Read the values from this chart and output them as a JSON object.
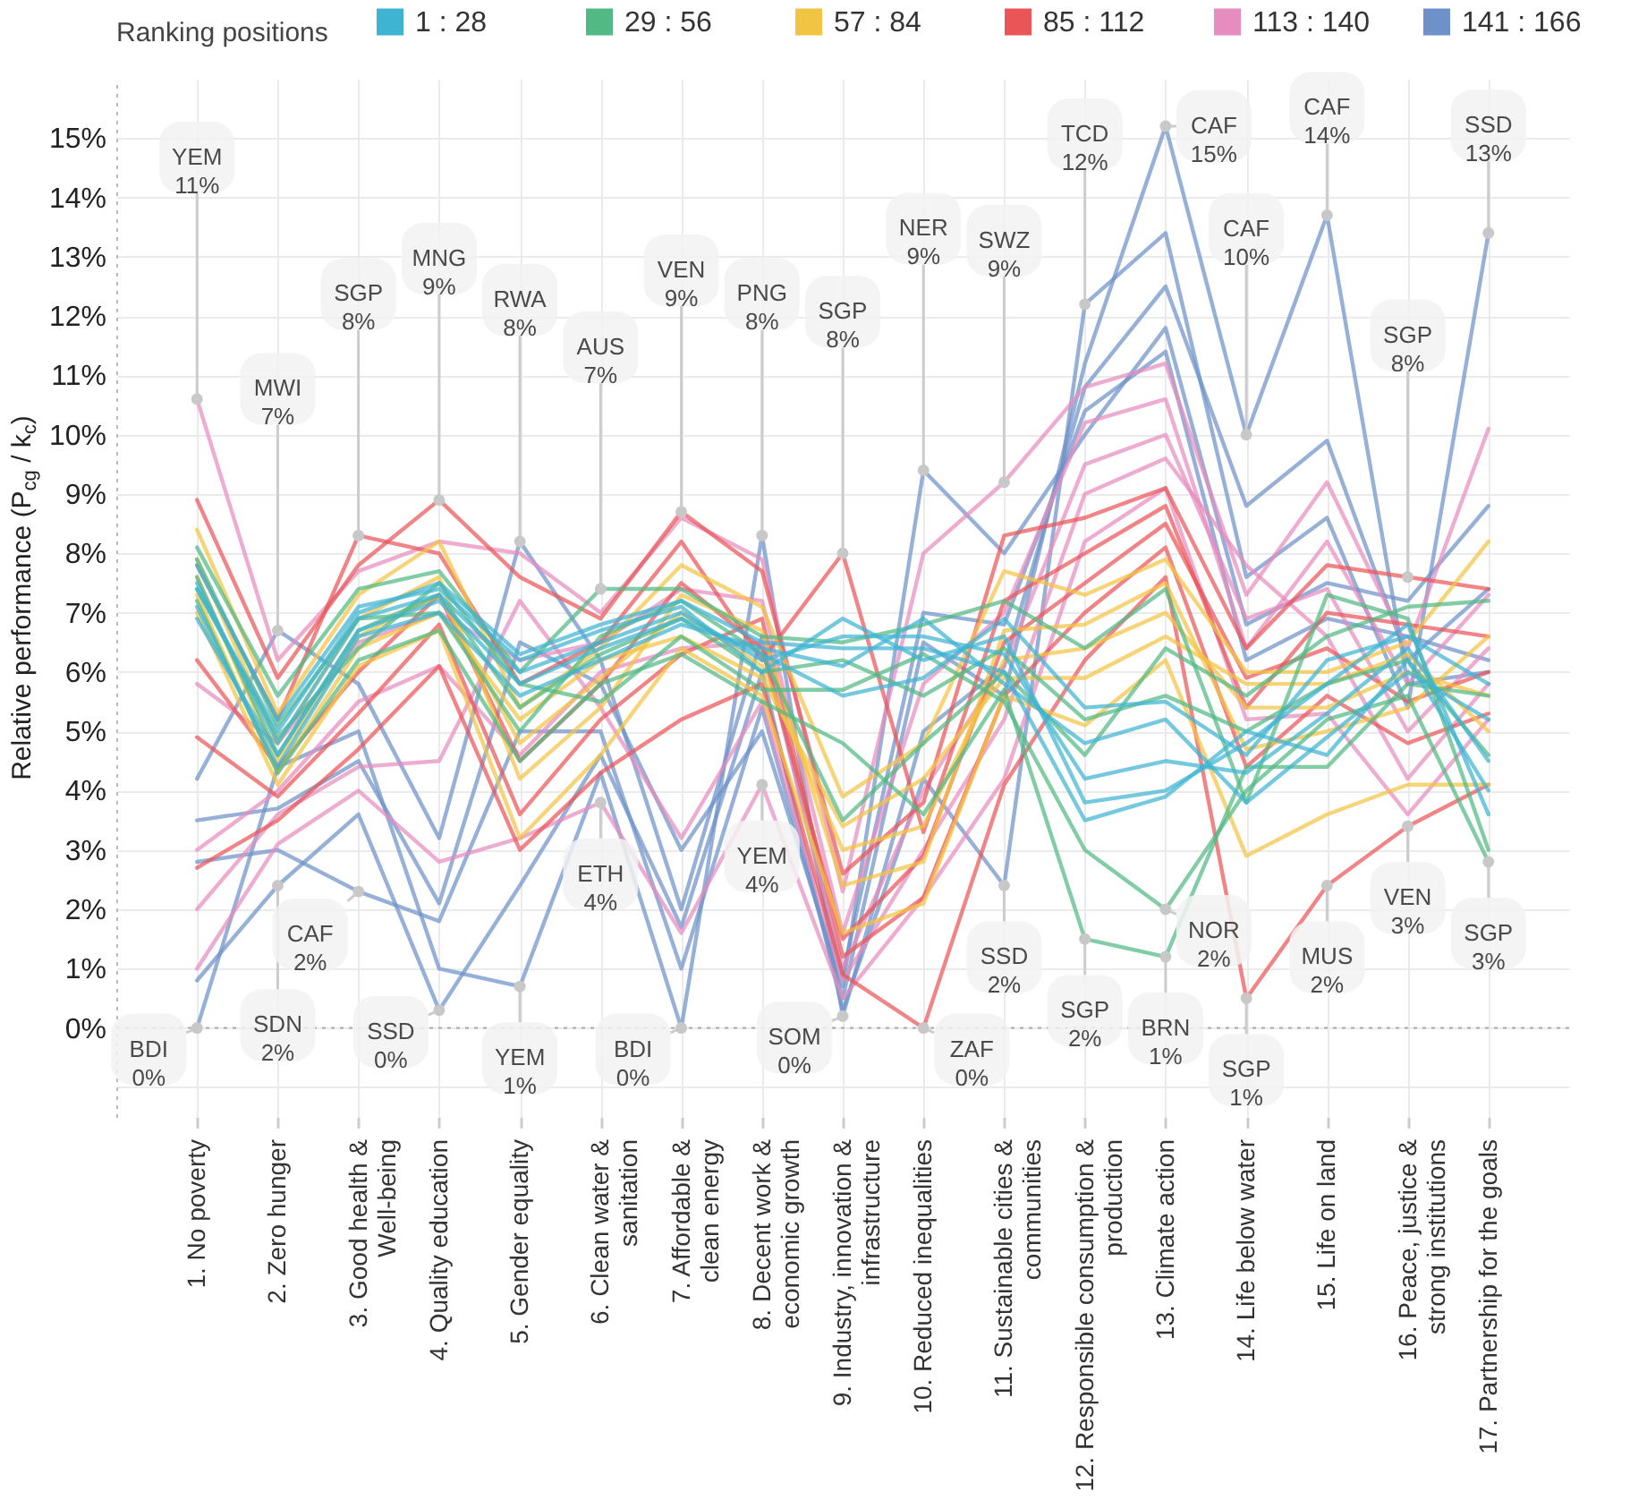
{
  "chart_data": {
    "type": "line",
    "ylabel": "Relative performance (P$_{cg}$ / k$_{c}$)",
    "legend_title": "Ranking positions",
    "legend": "top",
    "grid": true,
    "categories": [
      "1. No poverty",
      "2. Zero hunger",
      "3. Good health & Well-being",
      "4. Quality education",
      "5. Gender equality",
      "6. Clean water & sanitation",
      "7. Affordable & clean energy",
      "8. Decent work & economic growth",
      "9. Industry, innovation & infrastructure",
      "10. Reduced inequalities",
      "11. Sustainable cities & communities",
      "12. Responsible consumption & production",
      "13. Climate action",
      "14. Life below water",
      "15. Life on land",
      "16. Peace, justice & strong institutions",
      "17. Partnership for the goals"
    ],
    "ylim": [
      -1.5,
      16
    ],
    "yticks": [
      {
        "value": -1,
        "label": null
      },
      {
        "value": 0,
        "label": "0%"
      },
      {
        "value": 1,
        "label": "1%"
      },
      {
        "value": 2,
        "label": "2%"
      },
      {
        "value": 3,
        "label": "3%"
      },
      {
        "value": 4,
        "label": "4%"
      },
      {
        "value": 5,
        "label": "5%"
      },
      {
        "value": 6,
        "label": "6%"
      },
      {
        "value": 7,
        "label": "7%"
      },
      {
        "value": 8,
        "label": "8%"
      },
      {
        "value": 9,
        "label": "9%"
      },
      {
        "value": 10,
        "label": "10%"
      },
      {
        "value": 11,
        "label": "11%"
      },
      {
        "value": 12,
        "label": "12%"
      },
      {
        "value": 13,
        "label": "13%"
      },
      {
        "value": 14,
        "label": "14%"
      },
      {
        "value": 15,
        "label": "15%"
      }
    ],
    "ref_lines": [
      {
        "axis": "y",
        "value": 0,
        "line_style": "dotted",
        "color": "#aaaaaa"
      }
    ],
    "series": [
      {
        "name": "1 : 28",
        "color": "#3fb4d2",
        "values": [
          7.5,
          4.8,
          6.9,
          7.3,
          6.0,
          6.5,
          7.0,
          6.2,
          6.6,
          6.6,
          6.3,
          4.2,
          4.5,
          4.3,
          5.3,
          6.4,
          4.5
        ]
      },
      {
        "color": "#3fb4d2",
        "values": [
          7.8,
          5.2,
          7.1,
          7.4,
          6.2,
          6.7,
          7.1,
          6.0,
          6.9,
          6.2,
          6.6,
          3.8,
          4.0,
          4.8,
          5.8,
          6.8,
          3.6
        ]
      },
      {
        "color": "#3fb4d2",
        "values": [
          7.1,
          4.4,
          6.6,
          7.0,
          5.6,
          6.2,
          6.8,
          6.4,
          6.1,
          6.9,
          5.8,
          4.8,
          5.2,
          3.8,
          4.9,
          6.0,
          5.2
        ]
      },
      {
        "color": "#3fb4d2",
        "values": [
          6.9,
          4.6,
          6.7,
          7.2,
          5.8,
          6.4,
          6.9,
          6.3,
          5.6,
          5.9,
          6.9,
          5.4,
          5.5,
          4.6,
          6.2,
          6.6,
          5.8
        ]
      },
      {
        "color": "#3fb4d2",
        "values": [
          7.4,
          5.0,
          7.0,
          7.5,
          6.3,
          6.8,
          7.2,
          6.5,
          6.4,
          6.4,
          6.0,
          3.5,
          3.9,
          5.0,
          4.6,
          6.2,
          4.0
        ]
      },
      {
        "name": "29 : 56",
        "color": "#52b984",
        "values": [
          7.6,
          4.6,
          6.7,
          7.3,
          5.4,
          6.3,
          6.9,
          6.0,
          6.2,
          5.6,
          6.4,
          5.2,
          5.6,
          5.0,
          5.8,
          6.2,
          4.6
        ]
      },
      {
        "color": "#52b984",
        "values": [
          8.1,
          5.6,
          7.4,
          7.7,
          6.0,
          7.4,
          7.4,
          6.6,
          6.5,
          6.8,
          7.2,
          6.4,
          7.4,
          3.8,
          7.3,
          6.9,
          3.0
        ]
      },
      {
        "color": "#52b984",
        "values": [
          7.2,
          4.3,
          6.2,
          6.7,
          4.5,
          5.8,
          6.3,
          5.5,
          4.8,
          3.6,
          5.7,
          1.5,
          1.2,
          4.4,
          4.4,
          5.8,
          5.6
        ]
      },
      {
        "color": "#52b984",
        "values": [
          7.9,
          5.1,
          6.9,
          7.0,
          5.0,
          6.6,
          7.2,
          6.3,
          3.5,
          4.8,
          6.0,
          4.6,
          6.4,
          5.6,
          6.6,
          7.1,
          7.2
        ]
      },
      {
        "color": "#52b984",
        "values": [
          7.4,
          4.9,
          6.4,
          7.5,
          5.8,
          5.5,
          6.6,
          5.7,
          5.7,
          6.3,
          5.5,
          3.0,
          2.0,
          4.0,
          5.2,
          5.6,
          2.8
        ]
      },
      {
        "name": "57 : 84",
        "color": "#f2c443",
        "values": [
          7.6,
          4.5,
          6.6,
          7.3,
          4.8,
          5.9,
          7.0,
          6.1,
          3.0,
          3.4,
          6.2,
          6.4,
          7.0,
          5.4,
          5.4,
          6.0,
          5.6
        ]
      },
      {
        "color": "#f2c443",
        "values": [
          8.4,
          5.3,
          7.3,
          8.2,
          5.4,
          6.4,
          7.8,
          7.1,
          3.9,
          4.8,
          7.7,
          7.3,
          7.9,
          6.0,
          6.0,
          6.5,
          8.2
        ]
      },
      {
        "color": "#f2c443",
        "values": [
          7.0,
          4.1,
          6.1,
          6.7,
          3.2,
          4.6,
          6.4,
          5.6,
          1.6,
          2.1,
          5.6,
          5.1,
          6.2,
          2.9,
          3.6,
          4.1,
          4.1
        ]
      },
      {
        "color": "#f2c443",
        "values": [
          7.9,
          4.8,
          6.9,
          7.6,
          4.2,
          5.4,
          7.3,
          6.7,
          2.4,
          2.8,
          6.7,
          6.8,
          7.5,
          4.7,
          5.0,
          5.4,
          6.6
        ]
      },
      {
        "color": "#f2c443",
        "values": [
          7.3,
          4.3,
          6.4,
          7.0,
          5.2,
          6.2,
          6.6,
          5.9,
          3.4,
          4.2,
          5.9,
          5.9,
          6.6,
          5.8,
          5.8,
          6.3,
          5.0
        ]
      },
      {
        "name": "85 : 112",
        "color": "#ea5557",
        "values": [
          6.2,
          4.4,
          6.0,
          7.3,
          4.5,
          5.8,
          7.5,
          6.4,
          1.5,
          2.9,
          6.5,
          7.5,
          8.5,
          5.9,
          6.4,
          5.5,
          6.0
        ]
      },
      {
        "color": "#ea5557",
        "values": [
          8.9,
          5.9,
          7.8,
          8.9,
          7.6,
          6.9,
          8.7,
          7.7,
          2.6,
          3.8,
          8.3,
          8.6,
          9.1,
          6.4,
          7.8,
          7.6,
          7.4
        ]
      },
      {
        "color": "#ea5557",
        "values": [
          2.7,
          3.5,
          4.7,
          6.1,
          3.0,
          4.3,
          5.2,
          5.8,
          0.9,
          0.0,
          4.1,
          6.2,
          7.6,
          0.5,
          2.4,
          3.4,
          4.1
        ]
      },
      {
        "color": "#ea5557",
        "values": [
          4.9,
          3.9,
          5.3,
          6.8,
          3.6,
          5.2,
          6.3,
          6.9,
          1.2,
          2.2,
          5.6,
          7.0,
          8.1,
          4.4,
          5.6,
          4.8,
          5.3
        ]
      },
      {
        "color": "#ea5557",
        "values": [
          7.8,
          5.2,
          8.3,
          8.0,
          5.8,
          6.5,
          8.2,
          6.2,
          8.0,
          3.3,
          7.2,
          8.0,
          8.8,
          5.4,
          7.0,
          6.8,
          6.6
        ]
      },
      {
        "name": "113 : 140",
        "color": "#e68cbe",
        "values": [
          3.0,
          4.0,
          5.5,
          6.1,
          4.6,
          6.0,
          6.4,
          6.5,
          1.0,
          4.0,
          6.1,
          9.5,
          10.0,
          6.9,
          7.4,
          5.0,
          6.4
        ]
      },
      {
        "color": "#e68cbe",
        "values": [
          10.6,
          6.2,
          7.7,
          8.2,
          8.0,
          7.0,
          8.6,
          7.9,
          2.3,
          8.0,
          9.2,
          10.8,
          11.2,
          7.3,
          9.2,
          6.4,
          10.1
        ]
      },
      {
        "color": "#e68cbe",
        "values": [
          1.0,
          3.1,
          4.0,
          2.8,
          3.2,
          3.8,
          1.6,
          4.1,
          0.5,
          2.2,
          4.2,
          8.2,
          9.1,
          5.2,
          5.3,
          3.6,
          5.2
        ]
      },
      {
        "color": "#e68cbe",
        "values": [
          5.8,
          4.8,
          6.5,
          7.0,
          6.2,
          6.5,
          7.4,
          7.2,
          1.6,
          5.8,
          7.0,
          10.2,
          10.6,
          6.4,
          8.2,
          5.8,
          7.3
        ]
      },
      {
        "color": "#e68cbe",
        "values": [
          2.0,
          3.6,
          4.4,
          4.5,
          7.2,
          5.4,
          3.2,
          5.5,
          0.8,
          3.0,
          5.2,
          9.0,
          9.6,
          7.8,
          6.6,
          4.2,
          5.8
        ]
      },
      {
        "name": "141 : 166",
        "color": "#6e91c9",
        "values": [
          2.8,
          3.0,
          2.3,
          1.8,
          5.0,
          5.0,
          1.0,
          5.4,
          0.5,
          6.5,
          5.6,
          11.2,
          15.2,
          10.0,
          13.7,
          5.8,
          6.0
        ]
      },
      {
        "color": "#6e91c9",
        "values": [
          0.0,
          4.4,
          5.0,
          1.0,
          0.7,
          4.3,
          0.0,
          8.3,
          0.2,
          5.0,
          6.1,
          10.8,
          12.5,
          8.8,
          9.9,
          6.2,
          7.4
        ]
      },
      {
        "color": "#6e91c9",
        "values": [
          0.8,
          2.4,
          3.6,
          0.3,
          2.4,
          4.6,
          1.7,
          6.0,
          0.3,
          4.2,
          2.4,
          12.2,
          13.4,
          7.6,
          8.6,
          5.4,
          13.4
        ]
      },
      {
        "color": "#6e91c9",
        "values": [
          3.5,
          3.7,
          4.5,
          2.1,
          6.5,
          5.8,
          3.0,
          5.0,
          0.7,
          9.4,
          8.0,
          10.0,
          11.8,
          6.8,
          7.5,
          7.2,
          8.8
        ]
      },
      {
        "color": "#6e91c9",
        "values": [
          4.2,
          6.7,
          5.8,
          3.2,
          8.2,
          6.2,
          2.0,
          6.6,
          0.9,
          7.0,
          6.8,
          10.4,
          11.4,
          6.2,
          6.9,
          6.6,
          6.2
        ]
      }
    ],
    "annotations": [
      {
        "text": "YEM\n11%",
        "x": "1. No poverty",
        "y": 10.6
      },
      {
        "text": "BDI\n0%",
        "x": "1. No poverty",
        "y": 0
      },
      {
        "text": "MWI\n7%",
        "x": "2. Zero hunger",
        "y": 6.7
      },
      {
        "text": "SDN\n2%",
        "x": "2. Zero hunger",
        "y": 2.4
      },
      {
        "text": "SGP\n8%",
        "x": "3. Good health & Well-being",
        "y": 8.3
      },
      {
        "text": "CAF\n2%",
        "x": "3. Good health & Well-being",
        "y": 2.3
      },
      {
        "text": "MNG\n9%",
        "x": "4. Quality education",
        "y": 8.9
      },
      {
        "text": "SSD\n0%",
        "x": "4. Quality education",
        "y": 0.3
      },
      {
        "text": "RWA\n8%",
        "x": "5. Gender equality",
        "y": 8.2
      },
      {
        "text": "YEM\n1%",
        "x": "5. Gender equality",
        "y": 0.7
      },
      {
        "text": "AUS\n7%",
        "x": "6. Clean water & sanitation",
        "y": 7.4
      },
      {
        "text": "ETH\n4%",
        "x": "6. Clean water & sanitation",
        "y": 3.8
      },
      {
        "text": "VEN\n9%",
        "x": "7. Affordable & clean energy",
        "y": 8.7
      },
      {
        "text": "BDI\n0%",
        "x": "7. Affordable & clean energy",
        "y": 0
      },
      {
        "text": "PNG\n8%",
        "x": "8. Decent work & economic growth",
        "y": 8.3
      },
      {
        "text": "YEM\n4%",
        "x": "8. Decent work & economic growth",
        "y": 4.1
      },
      {
        "text": "SGP\n8%",
        "x": "9. Industry, innovation & infrastructure",
        "y": 8.0
      },
      {
        "text": "SOM\n0%",
        "x": "9. Industry, innovation & infrastructure",
        "y": 0.2
      },
      {
        "text": "NER\n9%",
        "x": "10. Reduced inequalities",
        "y": 9.4
      },
      {
        "text": "ZAF\n0%",
        "x": "10. Reduced inequalities",
        "y": 0
      },
      {
        "text": "SWZ\n9%",
        "x": "11. Sustainable cities & communities",
        "y": 9.2
      },
      {
        "text": "SSD\n2%",
        "x": "11. Sustainable cities & communities",
        "y": 2.4
      },
      {
        "text": "TCD\n12%",
        "x": "12. Responsible consumption & production",
        "y": 12.2
      },
      {
        "text": "SGP\n2%",
        "x": "12. Responsible consumption & production",
        "y": 1.5
      },
      {
        "text": "CAF\n15%",
        "x": "13. Climate action",
        "y": 15.2
      },
      {
        "text": "NOR\n2%",
        "x": "13. Climate action",
        "y": 2.0
      },
      {
        "text": "BRN\n1%",
        "x": "13. Climate action",
        "y": 1.2
      },
      {
        "text": "CAF\n10%",
        "x": "14. Life below water",
        "y": 10.0
      },
      {
        "text": "SGP\n1%",
        "x": "14. Life below water",
        "y": 0.5
      },
      {
        "text": "CAF\n14%",
        "x": "15. Life on land",
        "y": 13.7
      },
      {
        "text": "MUS\n2%",
        "x": "15. Life on land",
        "y": 2.4
      },
      {
        "text": "SGP\n8%",
        "x": "16. Peace, justice & strong institutions",
        "y": 7.6
      },
      {
        "text": "VEN\n3%",
        "x": "16. Peace, justice & strong institutions",
        "y": 3.4
      },
      {
        "text": "SSD\n13%",
        "x": "17. Partnership for the goals",
        "y": 13.4
      },
      {
        "text": "SGP\n3%",
        "x": "17. Partnership for the goals",
        "y": 2.8
      }
    ]
  }
}
